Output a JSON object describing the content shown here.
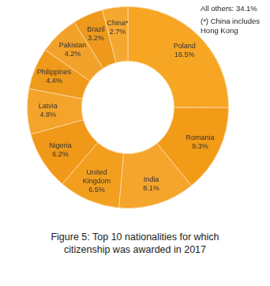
{
  "chart_data": {
    "type": "doughnut",
    "title": "Figure 5: Top 10 nationalities for which citizenship was awarded in 2017",
    "categories": [
      "Poland",
      "Romania",
      "India",
      "United Kingdom",
      "Nigeria",
      "Latvia",
      "Philippines",
      "Pakistan",
      "Brazil",
      "China*"
    ],
    "values": [
      16.5,
      9.3,
      8.1,
      6.5,
      6.2,
      4.8,
      4.4,
      4.2,
      3.2,
      2.7
    ],
    "value_labels": [
      "16.5%",
      "9.3%",
      "8.1%",
      "6.5%",
      "6.2%",
      "4.8%",
      "4.4%",
      "4.2%",
      "3.2%",
      "2.7%"
    ],
    "colors": [
      "#f6a623",
      "#f29b16",
      "#f5a52c",
      "#f39f1e",
      "#f09818",
      "#f4a42a",
      "#ef9a1a",
      "#f2a22a",
      "#ee991c",
      "#f5a830"
    ],
    "data_labels": true,
    "legend": false,
    "annotations": [
      "All others: 34.1%",
      "(*) China includes Hong Kong"
    ]
  }
}
